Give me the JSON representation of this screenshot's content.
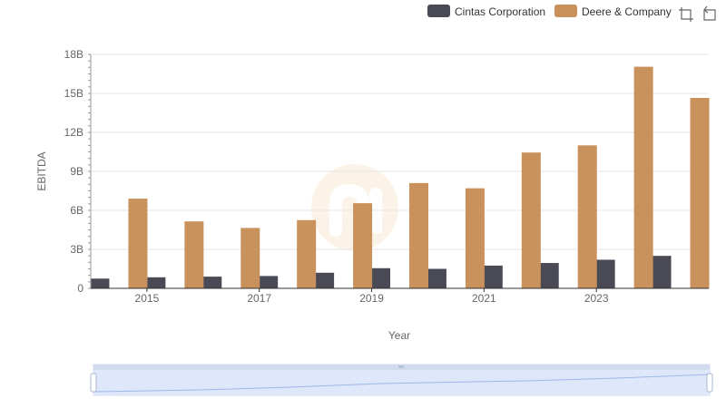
{
  "chart_data": {
    "type": "bar",
    "title": "",
    "xlabel": "Year",
    "ylabel": "EBITDA",
    "x": [
      2014,
      2015,
      2016,
      2017,
      2018,
      2019,
      2020,
      2021,
      2022,
      2023,
      2024
    ],
    "x_tick_labels": [
      "2015",
      "2017",
      "2019",
      "2021",
      "2023"
    ],
    "y_tick_labels": [
      "0",
      "3B",
      "6B",
      "9B",
      "12B",
      "15B",
      "18B"
    ],
    "ylim": [
      0,
      18000000000
    ],
    "grid": true,
    "legend_position": "top-right",
    "series": [
      {
        "name": "Cintas Corporation",
        "color": "#4a4a57",
        "values": [
          750000000,
          850000000,
          900000000,
          950000000,
          1200000000,
          1550000000,
          1500000000,
          1750000000,
          1950000000,
          2200000000,
          2500000000
        ]
      },
      {
        "name": "Deere & Company",
        "color": "#c9915b",
        "values": [
          6900000000,
          5150000000,
          4650000000,
          5250000000,
          6550000000,
          8100000000,
          7700000000,
          10450000000,
          11000000000,
          17050000000,
          14650000000
        ]
      }
    ]
  },
  "toolbar": {
    "icons": [
      "crop-icon",
      "restore-icon"
    ]
  }
}
